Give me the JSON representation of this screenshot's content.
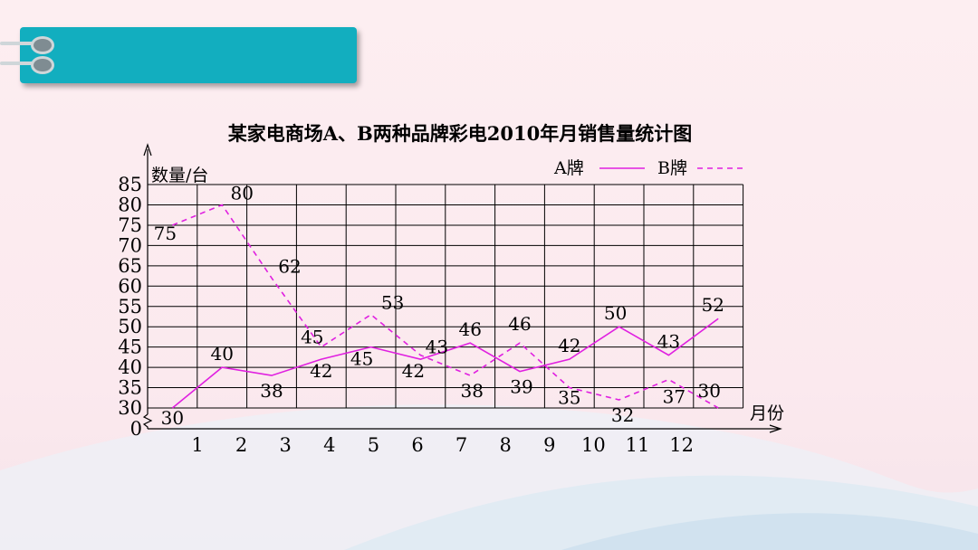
{
  "chart_data": {
    "type": "line",
    "title": "某家电商场A、B两种品牌彩电2010年月销售量统计图",
    "ylabel": "数量/台",
    "xlabel": "月份",
    "categories": [
      "1",
      "2",
      "3",
      "4",
      "5",
      "6",
      "7",
      "8",
      "9",
      "10",
      "11",
      "12"
    ],
    "yticks": [
      "0",
      "30",
      "35",
      "40",
      "45",
      "50",
      "55",
      "60",
      "65",
      "70",
      "75",
      "80",
      "85"
    ],
    "ylim": [
      30,
      85
    ],
    "axis_break": true,
    "grid": true,
    "legend_position": "top-right",
    "series": [
      {
        "name": "A牌",
        "style": "solid",
        "color": "#e020e0",
        "values": [
          30,
          40,
          38,
          42,
          45,
          42,
          46,
          39,
          42,
          50,
          43,
          52
        ]
      },
      {
        "name": "B牌",
        "style": "dashed",
        "color": "#e020e0",
        "values": [
          75,
          80,
          62,
          45,
          53,
          43,
          38,
          46,
          35,
          32,
          37,
          30
        ]
      }
    ]
  },
  "colors": {
    "header": "#12aebf",
    "series": "#e020e0",
    "grid": "#000000"
  }
}
